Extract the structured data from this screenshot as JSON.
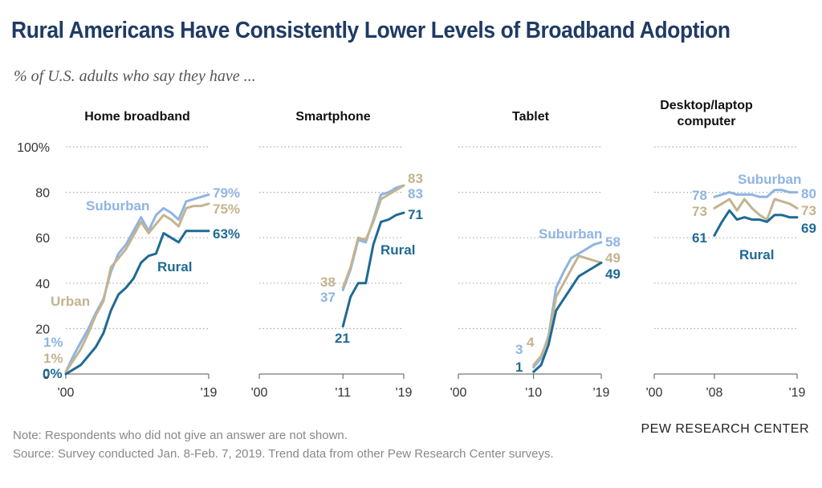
{
  "title": "Rural Americans Have Consistently Lower Levels of Broadband Adoption",
  "subtitle": "% of U.S. adults who say they have ...",
  "credit": "PEW RESEARCH CENTER",
  "note": "Note: Respondents who did not give an answer are not shown.",
  "source": "Source: Survey conducted Jan. 8-Feb. 7, 2019.  Trend data from other Pew Research Center surveys.",
  "colors": {
    "suburban": "#8fb4e3",
    "urban": "#c3b48f",
    "rural": "#1f6a94",
    "grid": "#aaaaaa"
  },
  "chart_data": [
    {
      "type": "line",
      "title": "Home broadband",
      "x_ticks": [
        "'00",
        "'19"
      ],
      "y_ticks": [
        "100%",
        "80",
        "60",
        "40",
        "20",
        "0"
      ],
      "ylim": [
        0,
        100
      ],
      "series": [
        {
          "name": "Suburban",
          "x": [
            2000,
            2001,
            2002,
            2003,
            2004,
            2005,
            2006,
            2007,
            2008,
            2009,
            2010,
            2011,
            2012,
            2013,
            2014,
            2015,
            2016,
            2017,
            2018,
            2019
          ],
          "values": [
            1,
            8,
            14,
            20,
            27,
            33,
            45,
            53,
            57,
            63,
            69,
            63,
            70,
            73,
            71,
            68,
            76,
            77,
            78,
            79
          ],
          "end_label": "79%",
          "start_label": "1%"
        },
        {
          "name": "Urban",
          "x": [
            2000,
            2001,
            2002,
            2003,
            2004,
            2005,
            2006,
            2007,
            2008,
            2009,
            2010,
            2011,
            2012,
            2013,
            2014,
            2015,
            2016,
            2017,
            2018,
            2019
          ],
          "values": [
            1,
            6,
            11,
            18,
            26,
            32,
            47,
            51,
            55,
            61,
            67,
            62,
            66,
            70,
            68,
            65,
            73,
            74,
            74,
            75
          ],
          "end_label": "75%",
          "start_label": "1%"
        },
        {
          "name": "Rural",
          "x": [
            2000,
            2001,
            2002,
            2003,
            2004,
            2005,
            2006,
            2007,
            2008,
            2009,
            2010,
            2011,
            2012,
            2013,
            2014,
            2015,
            2016,
            2017,
            2018,
            2019
          ],
          "values": [
            0,
            2,
            4,
            8,
            12,
            18,
            28,
            35,
            38,
            42,
            49,
            52,
            53,
            62,
            60,
            58,
            63,
            63,
            63,
            63
          ],
          "end_label": "63%",
          "start_label": "0%"
        }
      ],
      "series_labels": [
        "Suburban",
        "Urban",
        "Rural"
      ]
    },
    {
      "type": "line",
      "title": "Smartphone",
      "x_ticks": [
        "'00",
        "'11",
        "'19"
      ],
      "ylim": [
        0,
        100
      ],
      "series": [
        {
          "name": "Suburban",
          "x": [
            2011,
            2012,
            2013,
            2014,
            2015,
            2016,
            2017,
            2018,
            2019
          ],
          "values": [
            37,
            46,
            59,
            58,
            68,
            79,
            80,
            82,
            83
          ],
          "end_label": "83",
          "start_label": "37"
        },
        {
          "name": "Urban",
          "x": [
            2011,
            2012,
            2013,
            2014,
            2015,
            2016,
            2017,
            2018,
            2019
          ],
          "values": [
            38,
            47,
            60,
            59,
            67,
            77,
            79,
            81,
            83
          ],
          "end_label": "83",
          "start_label": "38"
        },
        {
          "name": "Rural",
          "x": [
            2011,
            2012,
            2013,
            2014,
            2015,
            2016,
            2017,
            2018,
            2019
          ],
          "values": [
            21,
            34,
            40,
            40,
            57,
            67,
            68,
            70,
            71
          ],
          "end_label": "71",
          "start_label": "21"
        }
      ],
      "series_labels": [
        "Rural"
      ]
    },
    {
      "type": "line",
      "title": "Tablet",
      "x_ticks": [
        "'00",
        "'10",
        "'19"
      ],
      "ylim": [
        0,
        100
      ],
      "series": [
        {
          "name": "Suburban",
          "x": [
            2010,
            2011,
            2012,
            2013,
            2014,
            2015,
            2016,
            2017,
            2018,
            2019
          ],
          "values": [
            3,
            7,
            17,
            38,
            45,
            51,
            53,
            55,
            57,
            58
          ],
          "end_label": "58",
          "start_label": "3"
        },
        {
          "name": "Urban",
          "x": [
            2010,
            2011,
            2012,
            2013,
            2014,
            2015,
            2016,
            2017,
            2018,
            2019
          ],
          "values": [
            4,
            8,
            16,
            34,
            40,
            46,
            52,
            51,
            50,
            49
          ],
          "end_label": "49",
          "start_label": "4"
        },
        {
          "name": "Rural",
          "x": [
            2010,
            2011,
            2012,
            2013,
            2014,
            2015,
            2016,
            2017,
            2018,
            2019
          ],
          "values": [
            1,
            4,
            13,
            28,
            33,
            38,
            43,
            45,
            47,
            49
          ],
          "end_label": "49",
          "start_label": "1"
        }
      ],
      "series_labels": [
        "Suburban"
      ]
    },
    {
      "type": "line",
      "title": "Desktop/laptop computer",
      "x_ticks": [
        "'00",
        "'08",
        "'19"
      ],
      "ylim": [
        0,
        100
      ],
      "series": [
        {
          "name": "Suburban",
          "x": [
            2008,
            2009,
            2010,
            2011,
            2012,
            2013,
            2014,
            2015,
            2016,
            2017,
            2018,
            2019
          ],
          "values": [
            78,
            79,
            80,
            79,
            79,
            79,
            78,
            78,
            81,
            81,
            80,
            80
          ],
          "end_label": "80",
          "start_label": "78"
        },
        {
          "name": "Urban",
          "x": [
            2008,
            2009,
            2010,
            2011,
            2012,
            2013,
            2014,
            2015,
            2016,
            2017,
            2018,
            2019
          ],
          "values": [
            73,
            75,
            77,
            72,
            77,
            73,
            70,
            68,
            77,
            76,
            75,
            73
          ],
          "end_label": "73",
          "start_label": "73"
        },
        {
          "name": "Rural",
          "x": [
            2008,
            2009,
            2010,
            2011,
            2012,
            2013,
            2014,
            2015,
            2016,
            2017,
            2018,
            2019
          ],
          "values": [
            61,
            67,
            72,
            68,
            69,
            68,
            68,
            67,
            70,
            70,
            69,
            69
          ],
          "end_label": "69",
          "start_label": "61"
        }
      ],
      "series_labels": [
        "Suburban",
        "Rural"
      ]
    }
  ]
}
